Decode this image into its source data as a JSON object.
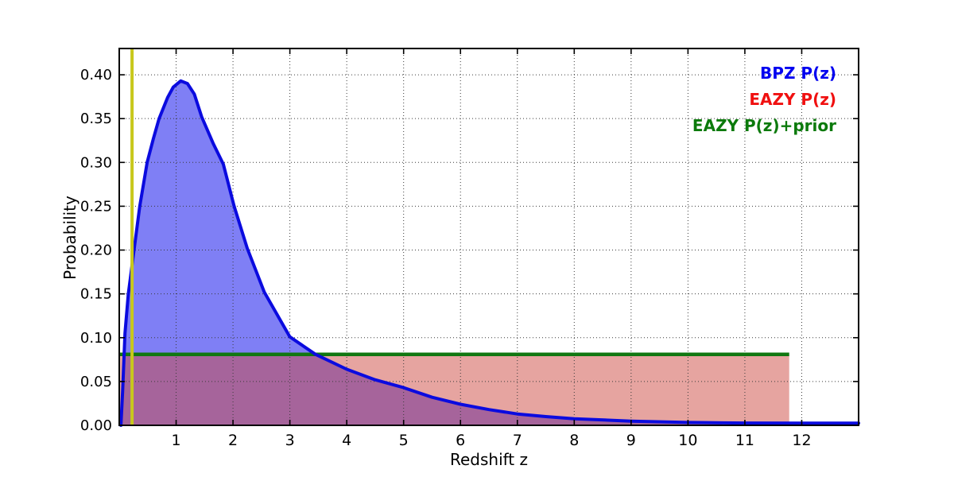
{
  "axes": {
    "xlabel": "Redshift z",
    "ylabel": "Probability"
  },
  "legend": [
    {
      "label": "BPZ P(z)",
      "color": "#0000f0"
    },
    {
      "label": "EAZY P(z)",
      "color": "#f01010"
    },
    {
      "label": "EAZY P(z)+prior",
      "color": "#0c7a0c"
    }
  ],
  "chart_data": {
    "type": "line",
    "title": "",
    "xlabel": "Redshift z",
    "ylabel": "Probability",
    "xlim": [
      0,
      13
    ],
    "ylim": [
      0,
      0.43
    ],
    "xticks": [
      1,
      2,
      3,
      4,
      5,
      6,
      7,
      8,
      9,
      10,
      11,
      12
    ],
    "yticks": [
      0.0,
      0.05,
      0.1,
      0.15,
      0.2,
      0.25,
      0.3,
      0.35,
      0.4
    ],
    "ytick_labels": [
      "0.00",
      "0.05",
      "0.10",
      "0.15",
      "0.20",
      "0.25",
      "0.30",
      "0.35",
      "0.40"
    ],
    "grid": true,
    "grid_style": "dotted",
    "legend_position": "upper right",
    "background": "#ffffff",
    "series": [
      {
        "name": "BPZ P(z)",
        "kind": "curve",
        "stroke": "#0b0bdf",
        "stroke_width": 4,
        "fill": "rgba(0,0,235,0.5)",
        "fill_end": 10.6,
        "points": [
          [
            0.03,
            0.0
          ],
          [
            0.06,
            0.04
          ],
          [
            0.1,
            0.105
          ],
          [
            0.16,
            0.15
          ],
          [
            0.26,
            0.2
          ],
          [
            0.36,
            0.25
          ],
          [
            0.49,
            0.3
          ],
          [
            0.6,
            0.327
          ],
          [
            0.7,
            0.35
          ],
          [
            0.85,
            0.374
          ],
          [
            0.95,
            0.386
          ],
          [
            1.08,
            0.393
          ],
          [
            1.2,
            0.39
          ],
          [
            1.32,
            0.378
          ],
          [
            1.45,
            0.352
          ],
          [
            1.65,
            0.322
          ],
          [
            1.83,
            0.298
          ],
          [
            2.02,
            0.25
          ],
          [
            2.25,
            0.202
          ],
          [
            2.55,
            0.152
          ],
          [
            3.0,
            0.101
          ],
          [
            3.45,
            0.081
          ],
          [
            4.0,
            0.064
          ],
          [
            4.5,
            0.052
          ],
          [
            5.0,
            0.043
          ],
          [
            5.5,
            0.032
          ],
          [
            6.0,
            0.024
          ],
          [
            6.5,
            0.018
          ],
          [
            7.0,
            0.013
          ],
          [
            7.5,
            0.01
          ],
          [
            8.0,
            0.0075
          ],
          [
            9.0,
            0.0048
          ],
          [
            10.0,
            0.0033
          ],
          [
            10.6,
            0.0028
          ],
          [
            11.0,
            0.0026
          ],
          [
            12.0,
            0.0025
          ],
          [
            13.0,
            0.0025
          ]
        ]
      },
      {
        "name": "EAZY P(z)",
        "kind": "box",
        "fill": "rgba(205,73,65,0.5)",
        "x0": 0,
        "x1": 11.78,
        "top": 0.0795
      },
      {
        "name": "EAZY P(z)+prior",
        "kind": "hline",
        "color": "#117711",
        "stroke_width": 4.5,
        "x0": 0,
        "x1": 11.78,
        "y": 0.081
      },
      {
        "name": "vline-marker",
        "kind": "vline",
        "color": "#c8c81c",
        "stroke_width": 4,
        "x": 0.225
      }
    ]
  }
}
